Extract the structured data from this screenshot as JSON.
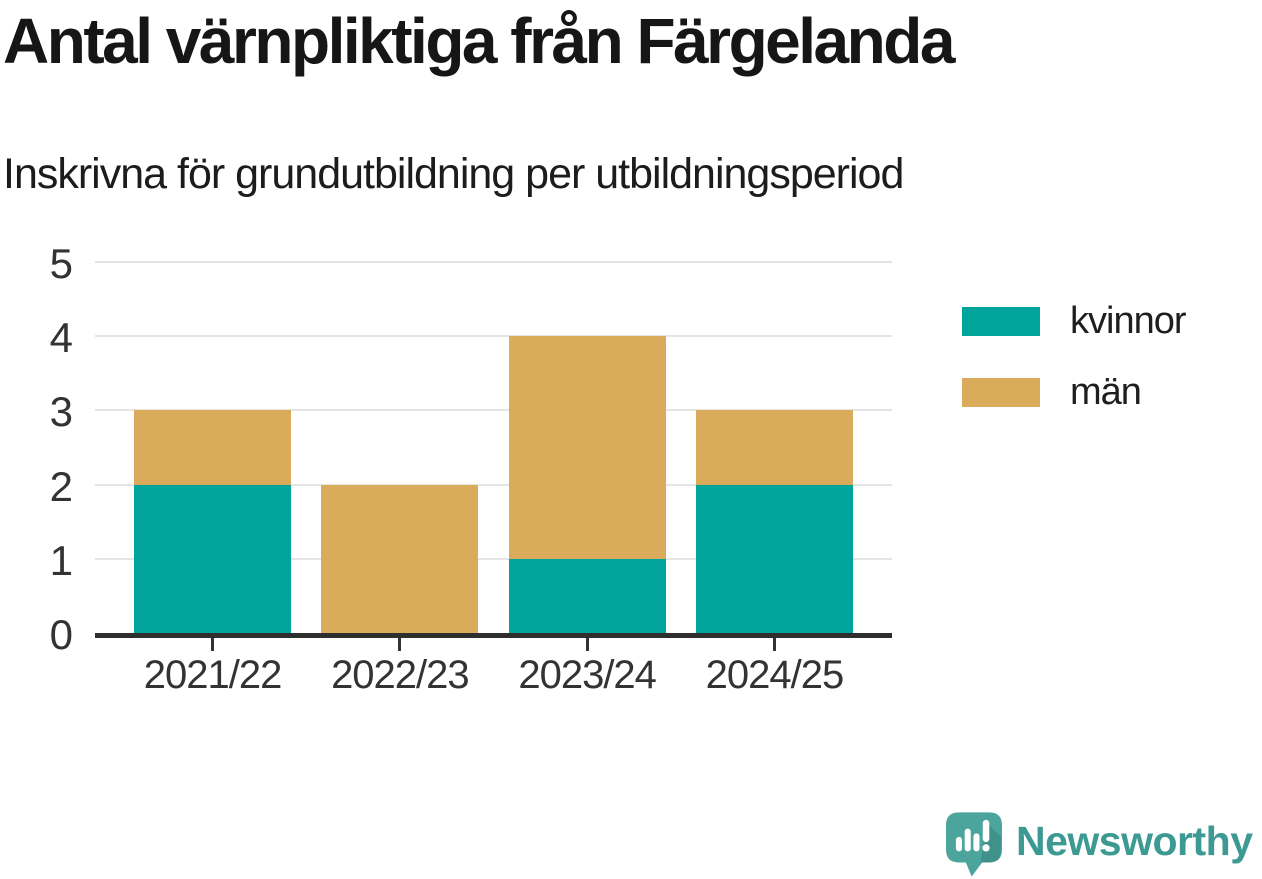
{
  "header": {
    "title": "Antal värnpliktiga från Färgelanda",
    "subtitle": "Inskrivna för grundutbildning per utbildningsperiod"
  },
  "chart_data": {
    "type": "bar",
    "stacked": true,
    "title": "Antal värnpliktiga från Färgelanda",
    "subtitle": "Inskrivna för grundutbildning per utbildningsperiod",
    "categories": [
      "2021/22",
      "2022/23",
      "2023/24",
      "2024/25"
    ],
    "series": [
      {
        "name": "kvinnor",
        "color": "#00a49b",
        "values": [
          2,
          0,
          1,
          2
        ]
      },
      {
        "name": "män",
        "color": "#d9ab5a",
        "values": [
          1,
          2,
          3,
          1
        ]
      }
    ],
    "totals": [
      3,
      2,
      4,
      3
    ],
    "xlabel": "",
    "ylabel": "",
    "ylim": [
      0,
      5
    ],
    "yticks": [
      0,
      1,
      2,
      3,
      4,
      5
    ],
    "grid": true,
    "legend_position": "right"
  },
  "footer": {
    "brand": "Newsworthy"
  },
  "colors": {
    "series_kvinnor": "#00a49b",
    "series_man": "#d9ab5a",
    "axis": "#333333",
    "gridline": "#e5e5e5",
    "brand_teal": "#3c9a93",
    "logo_bubble": "#4ba59d",
    "logo_shadow": "#3f9189"
  }
}
